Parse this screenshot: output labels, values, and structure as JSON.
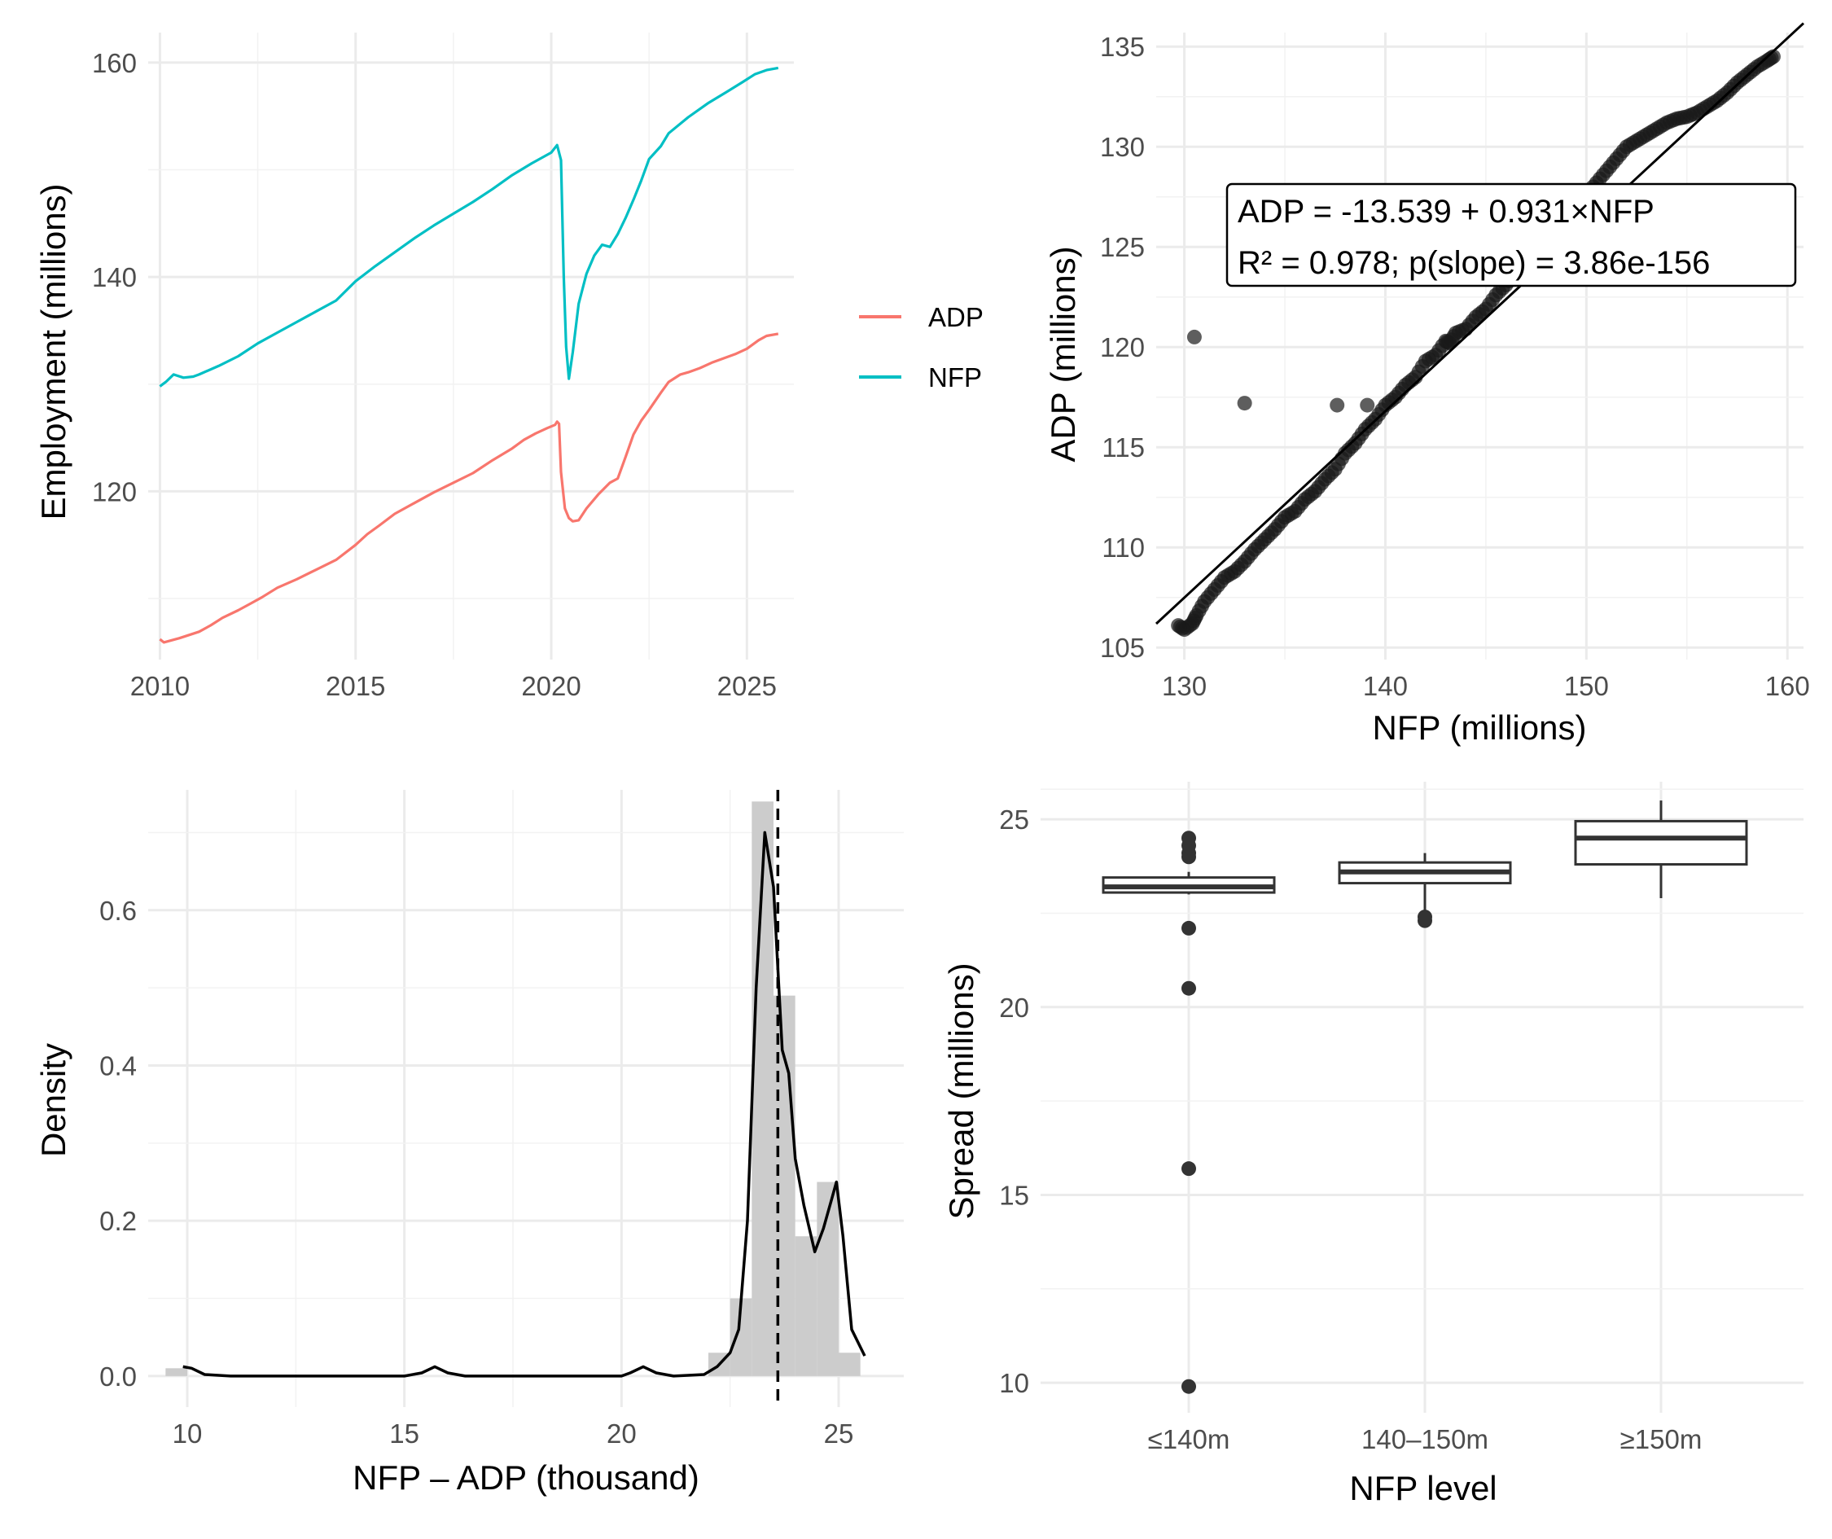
{
  "colors": {
    "adp": "#F8766D",
    "nfp": "#00BFC4",
    "points": "#1a1a1a",
    "hist_fill": "#cccccc",
    "box": "#333333"
  },
  "chart_data": [
    {
      "id": "timeseries",
      "type": "line",
      "ylabel": "Employment (millions)",
      "xlim": [
        2009.7,
        2026.2
      ],
      "ylim": [
        104.3,
        162.8
      ],
      "x_ticks": [
        2010,
        2015,
        2020,
        2025
      ],
      "y_ticks": [
        120,
        140,
        160
      ],
      "legend_position": "right",
      "series": [
        {
          "name": "ADP",
          "color_key": "adp",
          "points": [
            [
              2010.0,
              106.2
            ],
            [
              2010.1,
              105.9
            ],
            [
              2010.5,
              106.3
            ],
            [
              2011.0,
              106.9
            ],
            [
              2011.3,
              107.5
            ],
            [
              2011.6,
              108.2
            ],
            [
              2012.0,
              108.9
            ],
            [
              2012.3,
              109.5
            ],
            [
              2012.6,
              110.1
            ],
            [
              2013.0,
              111.0
            ],
            [
              2013.5,
              111.8
            ],
            [
              2014.0,
              112.7
            ],
            [
              2014.5,
              113.6
            ],
            [
              2015.0,
              115.0
            ],
            [
              2015.3,
              116.0
            ],
            [
              2015.6,
              116.8
            ],
            [
              2016.0,
              117.9
            ],
            [
              2016.5,
              118.9
            ],
            [
              2017.0,
              119.9
            ],
            [
              2017.5,
              120.8
            ],
            [
              2018.0,
              121.7
            ],
            [
              2018.5,
              122.9
            ],
            [
              2019.0,
              124.0
            ],
            [
              2019.3,
              124.8
            ],
            [
              2019.6,
              125.4
            ],
            [
              2019.9,
              125.9
            ],
            [
              2020.1,
              126.2
            ],
            [
              2020.15,
              126.5
            ],
            [
              2020.2,
              126.3
            ],
            [
              2020.25,
              121.8
            ],
            [
              2020.35,
              118.4
            ],
            [
              2020.45,
              117.5
            ],
            [
              2020.55,
              117.2
            ],
            [
              2020.7,
              117.3
            ],
            [
              2020.9,
              118.4
            ],
            [
              2021.2,
              119.7
            ],
            [
              2021.5,
              120.8
            ],
            [
              2021.7,
              121.2
            ],
            [
              2021.9,
              123.2
            ],
            [
              2022.1,
              125.3
            ],
            [
              2022.3,
              126.6
            ],
            [
              2022.5,
              127.6
            ],
            [
              2022.8,
              129.2
            ],
            [
              2023.0,
              130.2
            ],
            [
              2023.3,
              130.9
            ],
            [
              2023.5,
              131.1
            ],
            [
              2023.8,
              131.5
            ],
            [
              2024.1,
              132.0
            ],
            [
              2024.4,
              132.4
            ],
            [
              2024.7,
              132.8
            ],
            [
              2025.0,
              133.3
            ],
            [
              2025.3,
              134.1
            ],
            [
              2025.5,
              134.5
            ],
            [
              2025.8,
              134.7
            ]
          ]
        },
        {
          "name": "NFP",
          "color_key": "nfp",
          "points": [
            [
              2010.0,
              129.8
            ],
            [
              2010.15,
              130.2
            ],
            [
              2010.35,
              130.9
            ],
            [
              2010.6,
              130.6
            ],
            [
              2010.85,
              130.7
            ],
            [
              2011.0,
              130.9
            ],
            [
              2011.5,
              131.7
            ],
            [
              2012.0,
              132.6
            ],
            [
              2012.5,
              133.8
            ],
            [
              2013.0,
              134.8
            ],
            [
              2013.5,
              135.8
            ],
            [
              2014.0,
              136.8
            ],
            [
              2014.5,
              137.8
            ],
            [
              2015.0,
              139.6
            ],
            [
              2015.5,
              141.0
            ],
            [
              2016.0,
              142.3
            ],
            [
              2016.5,
              143.6
            ],
            [
              2017.0,
              144.8
            ],
            [
              2017.5,
              145.9
            ],
            [
              2018.0,
              147.0
            ],
            [
              2018.5,
              148.2
            ],
            [
              2019.0,
              149.5
            ],
            [
              2019.5,
              150.6
            ],
            [
              2020.0,
              151.6
            ],
            [
              2020.15,
              152.3
            ],
            [
              2020.25,
              150.9
            ],
            [
              2020.32,
              140.0
            ],
            [
              2020.38,
              133.5
            ],
            [
              2020.45,
              130.5
            ],
            [
              2020.55,
              133.0
            ],
            [
              2020.7,
              137.5
            ],
            [
              2020.9,
              140.3
            ],
            [
              2021.1,
              142.0
            ],
            [
              2021.3,
              143.0
            ],
            [
              2021.5,
              142.8
            ],
            [
              2021.7,
              144.0
            ],
            [
              2021.9,
              145.5
            ],
            [
              2022.1,
              147.2
            ],
            [
              2022.3,
              149.0
            ],
            [
              2022.5,
              151.0
            ],
            [
              2022.8,
              152.2
            ],
            [
              2023.0,
              153.4
            ],
            [
              2023.5,
              154.9
            ],
            [
              2024.0,
              156.2
            ],
            [
              2024.5,
              157.3
            ],
            [
              2024.9,
              158.2
            ],
            [
              2025.2,
              158.9
            ],
            [
              2025.5,
              159.3
            ],
            [
              2025.8,
              159.5
            ]
          ]
        }
      ]
    },
    {
      "id": "scatter",
      "type": "scatter",
      "xlabel": "NFP (millions)",
      "ylabel": "ADP (millions)",
      "xlim": [
        128.6,
        160.8
      ],
      "ylim": [
        104.4,
        135.7
      ],
      "x_ticks": [
        130,
        140,
        150,
        160
      ],
      "y_ticks": [
        105,
        110,
        115,
        120,
        125,
        130,
        135
      ],
      "fit": {
        "intercept": -13.539,
        "slope": 0.931
      },
      "annotation": [
        "ADP = -13.539 + 0.931×NFP",
        "R² = 0.978; p(slope) = 3.86e-156"
      ],
      "outliers": [
        [
          130.5,
          120.5
        ],
        [
          133.0,
          117.2
        ],
        [
          137.6,
          117.1
        ],
        [
          139.1,
          117.1
        ]
      ],
      "band_points": [
        [
          129.7,
          106.1
        ],
        [
          130.0,
          105.9
        ],
        [
          130.4,
          106.2
        ],
        [
          130.6,
          106.6
        ],
        [
          131.0,
          107.3
        ],
        [
          131.5,
          107.9
        ],
        [
          132.0,
          108.5
        ],
        [
          132.5,
          108.8
        ],
        [
          133.0,
          109.3
        ],
        [
          133.5,
          109.9
        ],
        [
          134.0,
          110.4
        ],
        [
          134.5,
          110.9
        ],
        [
          135.0,
          111.5
        ],
        [
          135.5,
          111.8
        ],
        [
          136.0,
          112.4
        ],
        [
          136.5,
          112.8
        ],
        [
          137.0,
          113.4
        ],
        [
          137.5,
          113.9
        ],
        [
          138.0,
          114.7
        ],
        [
          138.5,
          115.2
        ],
        [
          139.0,
          115.9
        ],
        [
          139.5,
          116.4
        ],
        [
          140.0,
          117.1
        ],
        [
          140.5,
          117.5
        ],
        [
          141.0,
          118.1
        ],
        [
          141.5,
          118.5
        ],
        [
          142.0,
          119.3
        ],
        [
          142.5,
          119.6
        ],
        [
          143.0,
          120.3
        ],
        [
          143.2,
          120.2
        ],
        [
          143.5,
          120.7
        ],
        [
          144.0,
          120.9
        ],
        [
          144.5,
          121.5
        ],
        [
          145.0,
          121.9
        ],
        [
          145.5,
          122.6
        ],
        [
          146.0,
          123.1
        ],
        [
          146.5,
          123.7
        ],
        [
          147.0,
          124.1
        ],
        [
          147.5,
          124.6
        ],
        [
          148.0,
          125.2
        ],
        [
          148.5,
          125.9
        ],
        [
          149.0,
          126.5
        ],
        [
          149.5,
          127.0
        ],
        [
          150.0,
          127.6
        ],
        [
          150.5,
          128.2
        ],
        [
          151.0,
          128.8
        ],
        [
          151.5,
          129.4
        ],
        [
          152.0,
          130.0
        ],
        [
          152.5,
          130.3
        ],
        [
          153.0,
          130.6
        ],
        [
          153.5,
          130.9
        ],
        [
          154.0,
          131.2
        ],
        [
          154.5,
          131.4
        ],
        [
          155.0,
          131.5
        ],
        [
          155.5,
          131.7
        ],
        [
          156.0,
          132.0
        ],
        [
          156.5,
          132.3
        ],
        [
          157.0,
          132.7
        ],
        [
          157.5,
          133.2
        ],
        [
          158.0,
          133.6
        ],
        [
          158.5,
          134.0
        ],
        [
          159.0,
          134.3
        ],
        [
          159.3,
          134.5
        ]
      ]
    },
    {
      "id": "density",
      "type": "area",
      "xlabel": "NFP – ADP (thousand)",
      "ylabel": "Density",
      "xlim": [
        9.1,
        26.5
      ],
      "ylim": [
        -0.04,
        0.755
      ],
      "x_ticks": [
        10,
        15,
        20,
        25
      ],
      "y_ticks": [
        0.0,
        0.2,
        0.4,
        0.6
      ],
      "mean_line": 23.6,
      "histogram": [
        [
          9.5,
          10.0,
          0.01
        ],
        [
          22.0,
          22.5,
          0.03
        ],
        [
          22.5,
          23.0,
          0.1
        ],
        [
          23.0,
          23.5,
          0.74
        ],
        [
          23.5,
          24.0,
          0.49
        ],
        [
          24.0,
          24.5,
          0.18
        ],
        [
          24.5,
          25.0,
          0.25
        ],
        [
          25.0,
          25.5,
          0.03
        ]
      ],
      "density_curve": [
        [
          9.9,
          0.012
        ],
        [
          10.1,
          0.01
        ],
        [
          10.4,
          0.002
        ],
        [
          11.0,
          0.0
        ],
        [
          15.0,
          0.0
        ],
        [
          15.4,
          0.004
        ],
        [
          15.7,
          0.012
        ],
        [
          16.0,
          0.004
        ],
        [
          16.4,
          0.0
        ],
        [
          20.0,
          0.0
        ],
        [
          20.2,
          0.004
        ],
        [
          20.5,
          0.012
        ],
        [
          20.8,
          0.004
        ],
        [
          21.2,
          0.0
        ],
        [
          21.9,
          0.002
        ],
        [
          22.2,
          0.012
        ],
        [
          22.5,
          0.03
        ],
        [
          22.7,
          0.06
        ],
        [
          22.9,
          0.2
        ],
        [
          23.1,
          0.5
        ],
        [
          23.3,
          0.7
        ],
        [
          23.5,
          0.63
        ],
        [
          23.7,
          0.42
        ],
        [
          23.85,
          0.39
        ],
        [
          24.0,
          0.28
        ],
        [
          24.2,
          0.22
        ],
        [
          24.45,
          0.16
        ],
        [
          24.65,
          0.19
        ],
        [
          24.85,
          0.23
        ],
        [
          24.95,
          0.25
        ],
        [
          25.1,
          0.18
        ],
        [
          25.3,
          0.06
        ],
        [
          25.6,
          0.026
        ]
      ]
    },
    {
      "id": "boxplot",
      "type": "box",
      "xlabel": "NFP level",
      "ylabel": "Spread (millions)",
      "ylim": [
        9.2,
        26.0
      ],
      "y_ticks": [
        10,
        15,
        20,
        25
      ],
      "categories": [
        "≤140m",
        "140–150m",
        "≥150m"
      ],
      "boxes": [
        {
          "whisker_low": 23.0,
          "q1": 23.05,
          "median": 23.2,
          "q3": 23.45,
          "whisker_high": 23.6,
          "outliers": [
            24.0,
            24.1,
            24.3,
            24.5,
            22.1,
            20.5,
            15.7,
            9.9
          ]
        },
        {
          "whisker_low": 22.4,
          "q1": 23.3,
          "median": 23.6,
          "q3": 23.85,
          "whisker_high": 24.1,
          "outliers": [
            22.3,
            22.4
          ]
        },
        {
          "whisker_low": 22.9,
          "q1": 23.8,
          "median": 24.5,
          "q3": 24.95,
          "whisker_high": 25.5,
          "outliers": []
        }
      ]
    }
  ]
}
